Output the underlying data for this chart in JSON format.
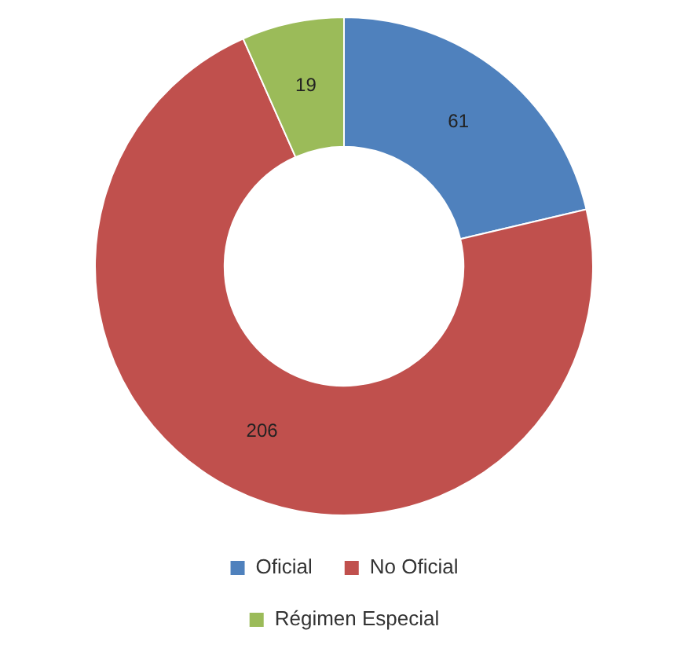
{
  "chart_data": {
    "type": "donut",
    "categories": [
      "Oficial",
      "No Oficial",
      "Régimen Especial"
    ],
    "values": [
      61,
      206,
      19
    ],
    "colors": [
      "#4f81bd",
      "#c0504d",
      "#9bbb59"
    ],
    "data_labels": true,
    "legend": "bottom"
  }
}
